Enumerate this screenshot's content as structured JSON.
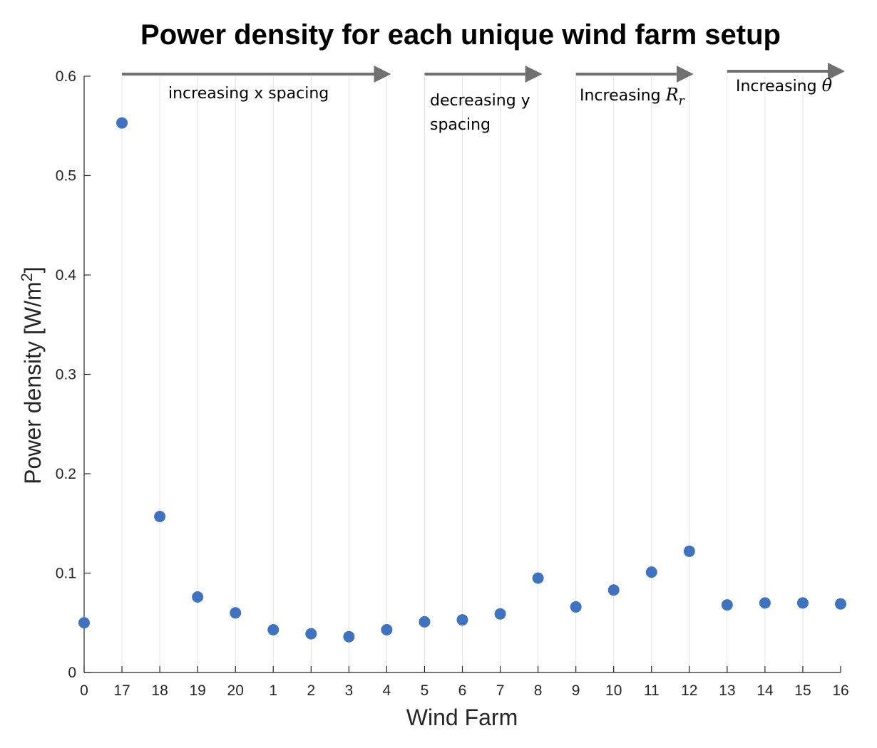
{
  "chart_data": {
    "type": "scatter",
    "title": "Power density for each unique wind farm setup",
    "xlabel": "Wind Farm",
    "ylabel": "Power density [W/m",
    "ylabel_superscript": "2",
    "ylabel_suffix": "]",
    "ylim": [
      0,
      0.6
    ],
    "yticks": [
      "0",
      "0.1",
      "0.2",
      "0.3",
      "0.4",
      "0.5",
      "0.6"
    ],
    "categories": [
      "0",
      "17",
      "18",
      "19",
      "20",
      "1",
      "2",
      "3",
      "4",
      "5",
      "6",
      "7",
      "8",
      "9",
      "10",
      "11",
      "12",
      "13",
      "14",
      "15",
      "16"
    ],
    "values": [
      0.05,
      0.553,
      0.157,
      0.076,
      0.06,
      0.043,
      0.039,
      0.036,
      0.043,
      0.051,
      0.053,
      0.059,
      0.095,
      0.066,
      0.083,
      0.101,
      0.122,
      0.068,
      0.07,
      0.07,
      0.069
    ],
    "grid": "vertical",
    "marker_color": "#3f72bf",
    "annotations": [
      {
        "lines": [
          "increasing x spacing"
        ],
        "from": "17",
        "to": "4"
      },
      {
        "lines": [
          "decreasing y",
          "spacing"
        ],
        "from": "5",
        "to": "8"
      },
      {
        "lines": [
          "Increasing "
        ],
        "math": "R",
        "math_sub": "r",
        "from": "9",
        "to": "12"
      },
      {
        "lines": [
          "Increasing "
        ],
        "math": "θ",
        "from": "13",
        "to": "16"
      }
    ],
    "arrow_color": "#707070"
  }
}
